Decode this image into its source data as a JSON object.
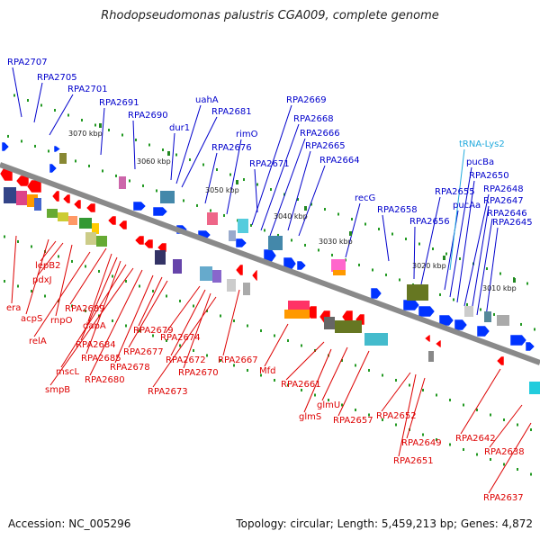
{
  "title": "Rhodopseudomonas palustris CGA009, complete genome",
  "footer": {
    "accession": "Accession: NC_005296",
    "summary": "Topology: circular; Length: 5,459,213 bp; Genes: 4,872"
  },
  "colors": {
    "forward_label": "#0000cc",
    "reverse_label": "#dd0000",
    "trna_label": "#22aadd",
    "backbone": "#8a8a8a",
    "forward_gene": "#0033ff",
    "reverse_gene": "#ff0000",
    "tick_dot": "#229922"
  },
  "scale_ticks": [
    "3070 kbp",
    "3060 kbp",
    "3050 kbp",
    "3040 kbp",
    "3030 kbp",
    "3020 kbp",
    "3010 kbp"
  ],
  "forward_labels": [
    "RPA2707",
    "RPA2705",
    "RPA2701",
    "RPA2691",
    "RPA2690",
    "uahA",
    "RPA2681",
    "dur1",
    "RPA2676",
    "rimO",
    "RPA2669",
    "RPA2668",
    "RPA2666",
    "RPA2671",
    "RPA2665",
    "RPA2664",
    "recG",
    "RPA2658",
    "RPA2656",
    "RPA2655",
    "pucAa",
    "pucBa",
    "RPA2650",
    "RPA2648",
    "RPA2647",
    "RPA2646",
    "RPA2645"
  ],
  "trna_labels": [
    "tRNA-Lys2"
  ],
  "reverse_labels": [
    "lepB2",
    "pdxJ",
    "era",
    "acpS",
    "rnpO",
    "relA",
    "RPA2689",
    "dapA",
    "RPA2684",
    "RPA2685",
    "mscL",
    "smpB",
    "RPA2679",
    "RPA2677",
    "RPA2678",
    "RPA2680",
    "RPA2674",
    "RPA2672",
    "RPA2670",
    "RPA2673",
    "RPA2667",
    "Mfd",
    "RPA2661",
    "glmS",
    "glmU",
    "RPA2657",
    "RPA2652",
    "RPA2651",
    "RPA2649",
    "RPA2642",
    "RPA2638",
    "RPA2637"
  ]
}
